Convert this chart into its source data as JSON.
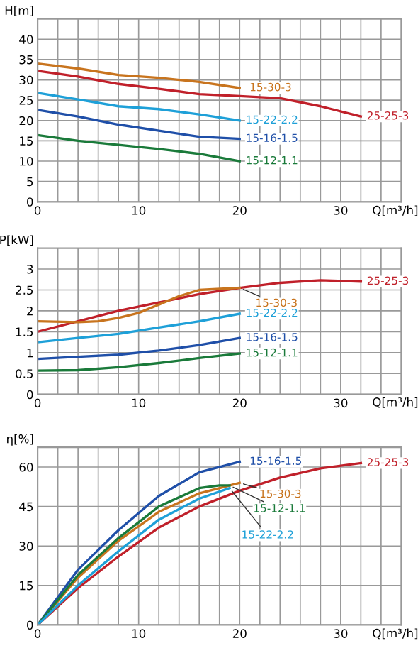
{
  "chart_data": [
    {
      "type": "line",
      "ylabel": "H[m]",
      "xlabel": "Q[m³/h]",
      "xlim": [
        0,
        36
      ],
      "ylim": [
        0,
        45
      ],
      "xticks": [
        0,
        {
          "value": 2,
          "label": null
        },
        {
          "value": 4,
          "label": null
        },
        {
          "value": 6,
          "label": null
        },
        {
          "value": 8,
          "label": null
        },
        10,
        {
          "value": 12,
          "label": null
        },
        {
          "value": 14,
          "label": null
        },
        {
          "value": 16,
          "label": null
        },
        {
          "value": 18,
          "label": null
        },
        20,
        {
          "value": 22,
          "label": null
        },
        {
          "value": 24,
          "label": null
        },
        {
          "value": 26,
          "label": null
        },
        {
          "value": 28,
          "label": null
        },
        30,
        {
          "value": 32,
          "label": null
        },
        {
          "value": 34,
          "label": null
        }
      ],
      "yticks": [
        0,
        5,
        10,
        15,
        20,
        25,
        30,
        35,
        40
      ],
      "grid": true,
      "legend": false,
      "marker": "none",
      "line_style": "solid",
      "series": [
        {
          "name": "15-30-3",
          "color": "#c8741e",
          "x": [
            0,
            4,
            8,
            12,
            16,
            20
          ],
          "values": [
            34,
            32.8,
            31.2,
            30.5,
            29.5,
            28
          ]
        },
        {
          "name": "25-25-3",
          "color": "#c0202a",
          "x": [
            0,
            4,
            8,
            12,
            16,
            20,
            24,
            28,
            32
          ],
          "values": [
            32.2,
            30.8,
            29,
            27.8,
            26.5,
            26,
            25.5,
            23.5,
            21
          ]
        },
        {
          "name": "15-22-2.2",
          "color": "#1ea0d8",
          "x": [
            0,
            4,
            8,
            12,
            16,
            20
          ],
          "values": [
            26.8,
            25.2,
            23.5,
            22.8,
            21.5,
            20
          ]
        },
        {
          "name": "15-16-1.5",
          "color": "#1f4fa8",
          "x": [
            0,
            4,
            8,
            12,
            16,
            20
          ],
          "values": [
            22.6,
            21,
            19,
            17.5,
            16,
            15.5
          ]
        },
        {
          "name": "15-12-1.1",
          "color": "#1a7a3a",
          "x": [
            0,
            4,
            8,
            12,
            16,
            20
          ],
          "values": [
            16.4,
            15,
            14,
            13,
            11.8,
            10
          ]
        }
      ]
    },
    {
      "type": "line",
      "ylabel": "P[kW]",
      "xlabel": "Q[m³/h]",
      "xlim": [
        0,
        36
      ],
      "ylim": [
        0,
        3.5
      ],
      "xticks": [
        0,
        {
          "value": 2,
          "label": null
        },
        {
          "value": 4,
          "label": null
        },
        {
          "value": 6,
          "label": null
        },
        {
          "value": 8,
          "label": null
        },
        10,
        {
          "value": 12,
          "label": null
        },
        {
          "value": 14,
          "label": null
        },
        {
          "value": 16,
          "label": null
        },
        {
          "value": 18,
          "label": null
        },
        20,
        {
          "value": 22,
          "label": null
        },
        {
          "value": 24,
          "label": null
        },
        {
          "value": 26,
          "label": null
        },
        {
          "value": 28,
          "label": null
        },
        30,
        {
          "value": 32,
          "label": null
        },
        {
          "value": 34,
          "label": null
        }
      ],
      "yticks": [
        0,
        0.5,
        1,
        1.5,
        2,
        2.5,
        3
      ],
      "grid": true,
      "legend": false,
      "marker": "none",
      "line_style": "solid",
      "series": [
        {
          "name": "25-25-3",
          "color": "#c0202a",
          "x": [
            0,
            4,
            8,
            12,
            16,
            20,
            24,
            28,
            32
          ],
          "values": [
            1.5,
            1.75,
            2.0,
            2.2,
            2.4,
            2.55,
            2.67,
            2.73,
            2.7
          ]
        },
        {
          "name": "15-30-3",
          "color": "#c8741e",
          "x": [
            0,
            4,
            6,
            8,
            10,
            12,
            14,
            16,
            20
          ],
          "values": [
            1.75,
            1.73,
            1.75,
            1.83,
            1.95,
            2.15,
            2.35,
            2.5,
            2.55
          ]
        },
        {
          "name": "15-22-2.2",
          "color": "#1ea0d8",
          "x": [
            0,
            4,
            8,
            12,
            16,
            20
          ],
          "values": [
            1.25,
            1.35,
            1.45,
            1.6,
            1.75,
            1.93
          ]
        },
        {
          "name": "15-16-1.5",
          "color": "#1f4fa8",
          "x": [
            0,
            4,
            8,
            12,
            16,
            20
          ],
          "values": [
            0.85,
            0.9,
            0.95,
            1.05,
            1.18,
            1.35
          ]
        },
        {
          "name": "15-12-1.1",
          "color": "#1a7a3a",
          "x": [
            0,
            4,
            8,
            12,
            16,
            20
          ],
          "values": [
            0.57,
            0.58,
            0.65,
            0.75,
            0.87,
            0.98
          ]
        }
      ]
    },
    {
      "type": "line",
      "ylabel": "η[%]",
      "xlabel": "Q[m³/h]",
      "xlim": [
        0,
        36
      ],
      "ylim": [
        0,
        67.5
      ],
      "xticks": [
        0,
        {
          "value": 2,
          "label": null
        },
        {
          "value": 4,
          "label": null
        },
        {
          "value": 6,
          "label": null
        },
        {
          "value": 8,
          "label": null
        },
        10,
        {
          "value": 12,
          "label": null
        },
        {
          "value": 14,
          "label": null
        },
        {
          "value": 16,
          "label": null
        },
        {
          "value": 18,
          "label": null
        },
        20,
        {
          "value": 22,
          "label": null
        },
        {
          "value": 24,
          "label": null
        },
        {
          "value": 26,
          "label": null
        },
        {
          "value": 28,
          "label": null
        },
        30,
        {
          "value": 32,
          "label": null
        },
        {
          "value": 34,
          "label": null
        }
      ],
      "yticks": [
        0,
        15,
        30,
        45,
        60
      ],
      "grid": true,
      "legend": false,
      "marker": "none",
      "line_style": "solid",
      "series": [
        {
          "name": "15-16-1.5",
          "color": "#1f4fa8",
          "x": [
            0,
            4,
            8,
            12,
            16,
            20
          ],
          "values": [
            0,
            21,
            36,
            49,
            58,
            62
          ]
        },
        {
          "name": "25-25-3",
          "color": "#c0202a",
          "x": [
            0,
            4,
            8,
            12,
            16,
            20,
            24,
            28,
            32
          ],
          "values": [
            0,
            14,
            26,
            37,
            45,
            51,
            56,
            59.5,
            61.5
          ]
        },
        {
          "name": "15-30-3",
          "color": "#c8741e",
          "x": [
            0,
            4,
            8,
            12,
            16,
            20
          ],
          "values": [
            0,
            18,
            32,
            43,
            50,
            54
          ]
        },
        {
          "name": "15-12-1.1",
          "color": "#1a7a3a",
          "x": [
            0,
            4,
            8,
            12,
            16,
            18,
            19
          ],
          "values": [
            0,
            19,
            33,
            45,
            52,
            53,
            53
          ]
        },
        {
          "name": "15-22-2.2",
          "color": "#1ea0d8",
          "x": [
            0,
            4,
            8,
            12,
            16,
            19
          ],
          "values": [
            0,
            15,
            28,
            40,
            48,
            52
          ]
        }
      ]
    }
  ]
}
